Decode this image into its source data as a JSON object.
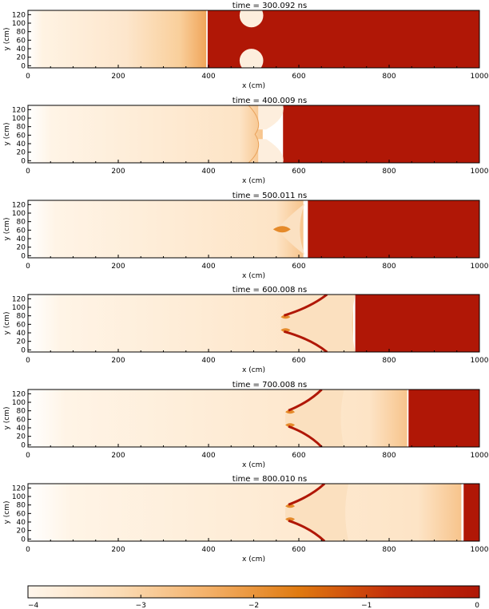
{
  "chart_data": [
    {
      "type": "heatmap",
      "title": "time =   300.092  ns",
      "xlabel": "x (cm)",
      "ylabel": "y (cm)",
      "xlim": [
        0,
        1000
      ],
      "ylim": [
        -5,
        130
      ],
      "xticks": [
        "0",
        "200",
        "400",
        "600",
        "800",
        "1000"
      ],
      "yticks": [
        "0",
        "20",
        "40",
        "60",
        "80",
        "100",
        "120"
      ],
      "front_x": 395,
      "dense_region_start_x": 398,
      "cloud_edge_x": [
        470,
        520
      ]
    },
    {
      "type": "heatmap",
      "title": "time =   400.009  ns",
      "xlabel": "x (cm)",
      "ylabel": "y (cm)",
      "xlim": [
        0,
        1000
      ],
      "ylim": [
        -5,
        130
      ],
      "xticks": [
        "0",
        "200",
        "400",
        "600",
        "800",
        "1000"
      ],
      "yticks": [
        "0",
        "20",
        "40",
        "60",
        "80",
        "100",
        "120"
      ],
      "front_x": 520,
      "dense_region_start_x": 565,
      "cloud_edge_x": [
        510,
        565
      ]
    },
    {
      "type": "heatmap",
      "title": "time =   500.011  ns",
      "xlabel": "x (cm)",
      "ylabel": "y (cm)",
      "xlim": [
        0,
        1000
      ],
      "ylim": [
        -5,
        130
      ],
      "xticks": [
        "0",
        "200",
        "400",
        "600",
        "800",
        "1000"
      ],
      "yticks": [
        "0",
        "20",
        "40",
        "60",
        "80",
        "100",
        "120"
      ],
      "front_x": 610,
      "dense_region_start_x": 620,
      "cloud_edge_x": [
        550,
        620
      ]
    },
    {
      "type": "heatmap",
      "title": "time =   600.008  ns",
      "xlabel": "x (cm)",
      "ylabel": "y (cm)",
      "xlim": [
        0,
        1000
      ],
      "ylim": [
        -5,
        130
      ],
      "xticks": [
        "0",
        "200",
        "400",
        "600",
        "800",
        "1000"
      ],
      "yticks": [
        "0",
        "20",
        "40",
        "60",
        "80",
        "100",
        "120"
      ],
      "front_x": 720,
      "dense_region_start_x": 725,
      "cloud_edge_x": [
        560,
        725
      ]
    },
    {
      "type": "heatmap",
      "title": "time =   700.008  ns",
      "xlabel": "x (cm)",
      "ylabel": "y (cm)",
      "xlim": [
        0,
        1000
      ],
      "ylim": [
        -5,
        130
      ],
      "xticks": [
        "0",
        "200",
        "400",
        "600",
        "800",
        "1000"
      ],
      "yticks": [
        "0",
        "20",
        "40",
        "60",
        "80",
        "100",
        "120"
      ],
      "front_x": 840,
      "dense_region_start_x": 843,
      "cloud_edge_x": [
        570,
        700
      ]
    },
    {
      "type": "heatmap",
      "title": "time =   800.010  ns",
      "xlabel": "x (cm)",
      "ylabel": "y (cm)",
      "xlim": [
        0,
        1000
      ],
      "ylim": [
        -5,
        130
      ],
      "xticks": [
        "0",
        "200",
        "400",
        "600",
        "800",
        "1000"
      ],
      "yticks": [
        "0",
        "20",
        "40",
        "60",
        "80",
        "100",
        "120"
      ],
      "front_x": 960,
      "dense_region_start_x": 965,
      "cloud_edge_x": [
        570,
        710
      ]
    }
  ],
  "colorbar": {
    "range": [
      -4,
      0
    ],
    "ticks": [
      "−4",
      "−3",
      "−2",
      "−1",
      "0"
    ],
    "colors": [
      "#fff6ec",
      "#fbdcb6",
      "#f3b068",
      "#e07a10",
      "#c4300a",
      "#b01706"
    ]
  },
  "colors": {
    "dense": "#b01706",
    "light": "#fff6ec",
    "mid": "#f6c48a",
    "front": "#e8861f"
  }
}
